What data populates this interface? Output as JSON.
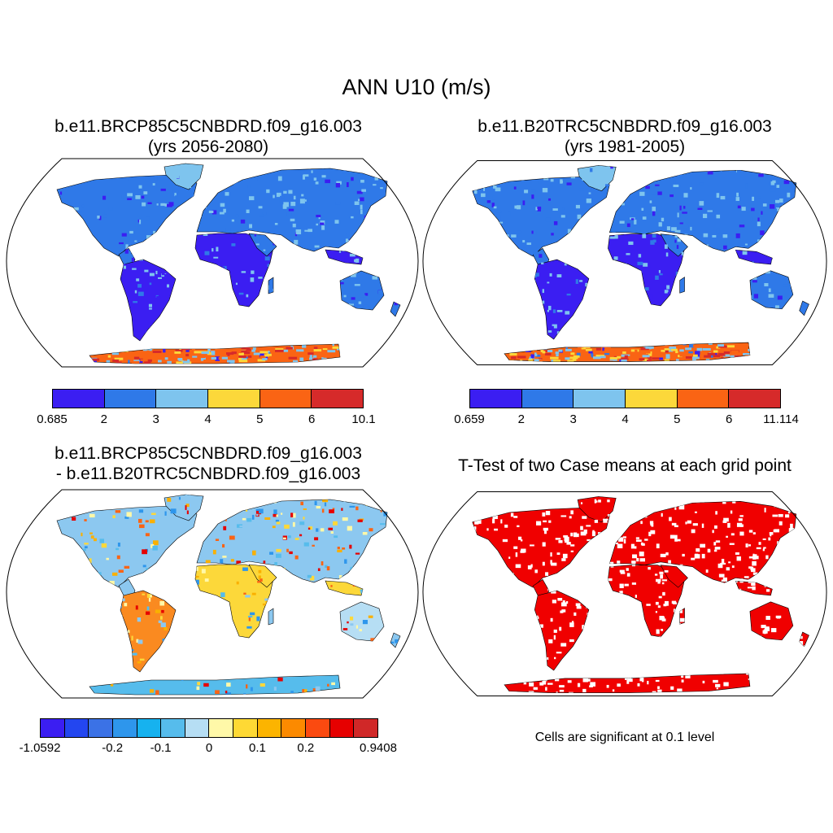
{
  "title": "ANN U10 (m/s)",
  "panels": [
    {
      "id": "p1",
      "title_line1": "b.e11.BRCP85C5CNBDRD.f09_g16.003",
      "title_line2": "(yrs 2056-2080)",
      "style": "abs",
      "colorbar": {
        "colors": [
          "#3b1ef2",
          "#2f79e8",
          "#7ec4ee",
          "#fcd83a",
          "#fa6414",
          "#d62a2a"
        ],
        "labels": [
          "0.685",
          "2",
          "3",
          "4",
          "5",
          "6",
          "10.1"
        ]
      }
    },
    {
      "id": "p2",
      "title_line1": "b.e11.B20TRC5CNBDRD.f09_g16.003",
      "title_line2": "(yrs 1981-2005)",
      "style": "abs",
      "colorbar": {
        "colors": [
          "#3b1ef2",
          "#2f79e8",
          "#7ec4ee",
          "#fcd83a",
          "#fa6414",
          "#d62a2a"
        ],
        "labels": [
          "0.659",
          "2",
          "3",
          "4",
          "5",
          "6",
          "11.114"
        ]
      }
    },
    {
      "id": "p3",
      "title_line1": "b.e11.BRCP85C5CNBDRD.f09_g16.003",
      "title_line2": "- b.e11.B20TRC5CNBDRD.f09_g16.003",
      "style": "diff",
      "colorbar": {
        "colors": [
          "#3b1ef2",
          "#2346f0",
          "#3b72e6",
          "#2e96ec",
          "#16b2ef",
          "#56bcec",
          "#b6def4",
          "#fff8a8",
          "#fed934",
          "#fcb400",
          "#fc8a00",
          "#fb4a10",
          "#e60000",
          "#d02828"
        ],
        "labels": [
          "-1.0592",
          "-0.2",
          "-0.1",
          "0",
          "0.1",
          "0.2",
          "0.9408"
        ]
      }
    },
    {
      "id": "p4",
      "title_line1": "T-Test of two Case means at each grid point",
      "title_line2": "",
      "style": "ttest",
      "note": "Cells are significant at 0.1 level"
    }
  ]
}
